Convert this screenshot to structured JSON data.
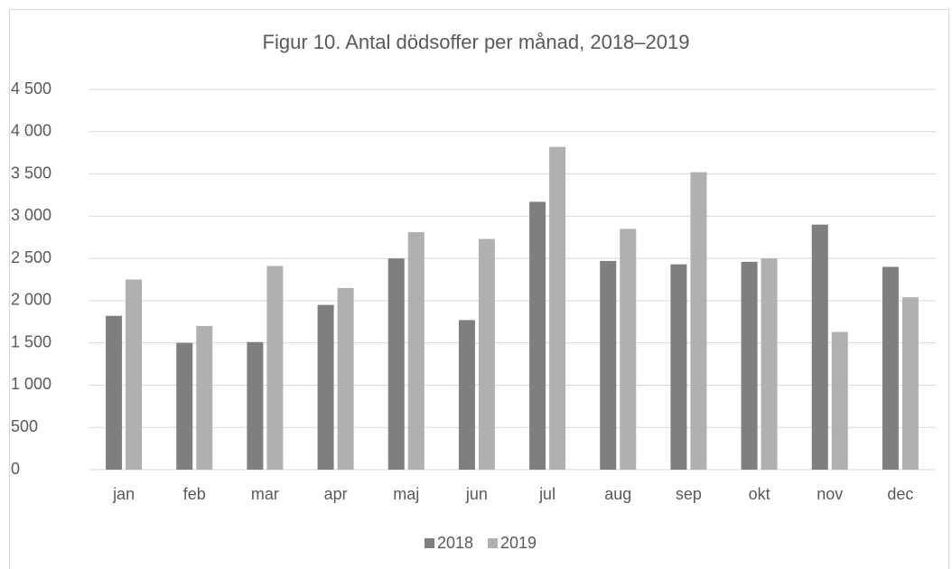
{
  "chart_data": {
    "type": "bar",
    "title": "Figur 10. Antal dödsoffer per månad, 2018–2019",
    "categories": [
      "jan",
      "feb",
      "mar",
      "apr",
      "maj",
      "jun",
      "jul",
      "aug",
      "sep",
      "okt",
      "nov",
      "dec"
    ],
    "series": [
      {
        "name": "2018",
        "color": "#7f7f7f",
        "values": [
          1820,
          1500,
          1510,
          1950,
          2500,
          1770,
          3170,
          2470,
          2430,
          2460,
          2900,
          2400
        ]
      },
      {
        "name": "2019",
        "color": "#b0b0b0",
        "values": [
          2250,
          1700,
          2410,
          2150,
          2810,
          2730,
          3820,
          2850,
          3520,
          2500,
          1630,
          2040
        ]
      }
    ],
    "ylim": [
      0,
      4500
    ],
    "yticks": [
      0,
      500,
      {
        "value": 1000,
        "label": "1 000"
      },
      {
        "value": 1500,
        "label": "1 500"
      },
      {
        "value": 2000,
        "label": "2 000"
      },
      {
        "value": 2500,
        "label": "2 500"
      },
      {
        "value": 3000,
        "label": "3 000"
      },
      {
        "value": 3500,
        "label": "3 500"
      },
      {
        "value": 4000,
        "label": "4 000"
      },
      {
        "value": 4500,
        "label": "4 500"
      }
    ],
    "grid": true,
    "legend": "bottom"
  }
}
